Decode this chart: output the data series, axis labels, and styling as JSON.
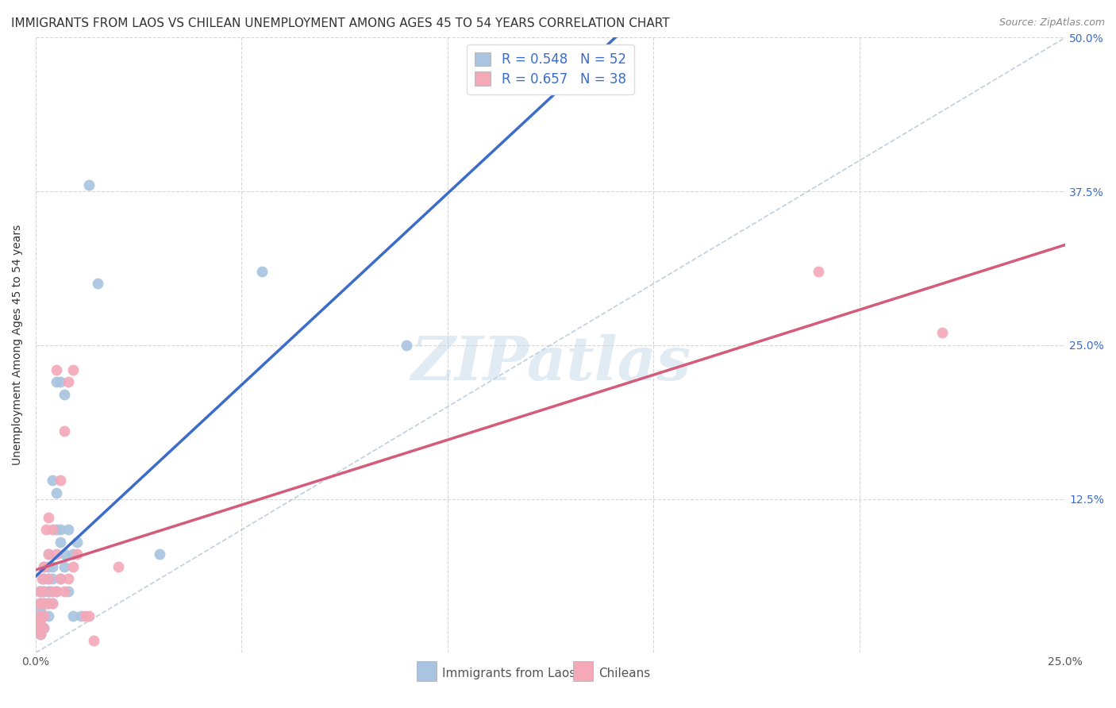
{
  "title": "IMMIGRANTS FROM LAOS VS CHILEAN UNEMPLOYMENT AMONG AGES 45 TO 54 YEARS CORRELATION CHART",
  "source": "Source: ZipAtlas.com",
  "ylabel": "Unemployment Among Ages 45 to 54 years",
  "xlabel_laos": "Immigrants from Laos",
  "xlabel_chileans": "Chileans",
  "xlim": [
    0.0,
    0.25
  ],
  "ylim": [
    0.0,
    0.5
  ],
  "xticks": [
    0.0,
    0.05,
    0.1,
    0.15,
    0.2,
    0.25
  ],
  "yticks": [
    0.0,
    0.125,
    0.25,
    0.375,
    0.5
  ],
  "R_laos": 0.548,
  "N_laos": 52,
  "R_chileans": 0.657,
  "N_chileans": 38,
  "color_laos": "#a8c4e0",
  "color_chileans": "#f4a8b8",
  "line_color_laos": "#3b6cc9",
  "line_color_chileans": "#d45b7a",
  "line_color_dashed": "#b0c4d8",
  "watermark": "ZIPatlas",
  "laos_x": [
    0.0005,
    0.0008,
    0.001,
    0.001,
    0.001,
    0.0012,
    0.0012,
    0.0015,
    0.0015,
    0.0015,
    0.0015,
    0.0018,
    0.002,
    0.002,
    0.002,
    0.002,
    0.002,
    0.002,
    0.0025,
    0.003,
    0.003,
    0.003,
    0.003,
    0.003,
    0.003,
    0.0035,
    0.004,
    0.004,
    0.004,
    0.004,
    0.005,
    0.005,
    0.005,
    0.005,
    0.006,
    0.006,
    0.006,
    0.006,
    0.007,
    0.007,
    0.007,
    0.008,
    0.008,
    0.009,
    0.009,
    0.01,
    0.011,
    0.013,
    0.015,
    0.03,
    0.055,
    0.09
  ],
  "laos_y": [
    0.02,
    0.03,
    0.025,
    0.04,
    0.05,
    0.015,
    0.035,
    0.02,
    0.03,
    0.04,
    0.05,
    0.06,
    0.02,
    0.03,
    0.04,
    0.05,
    0.06,
    0.07,
    0.04,
    0.03,
    0.04,
    0.05,
    0.06,
    0.07,
    0.08,
    0.05,
    0.04,
    0.06,
    0.07,
    0.14,
    0.05,
    0.1,
    0.13,
    0.22,
    0.06,
    0.09,
    0.1,
    0.22,
    0.07,
    0.08,
    0.21,
    0.05,
    0.1,
    0.03,
    0.08,
    0.09,
    0.03,
    0.38,
    0.3,
    0.08,
    0.31,
    0.25
  ],
  "chilean_x": [
    0.0005,
    0.0008,
    0.001,
    0.001,
    0.001,
    0.0012,
    0.0015,
    0.0015,
    0.002,
    0.002,
    0.002,
    0.002,
    0.0025,
    0.003,
    0.003,
    0.003,
    0.003,
    0.004,
    0.004,
    0.004,
    0.005,
    0.005,
    0.005,
    0.006,
    0.006,
    0.007,
    0.007,
    0.008,
    0.008,
    0.009,
    0.009,
    0.01,
    0.012,
    0.013,
    0.014,
    0.02,
    0.19,
    0.22
  ],
  "chilean_y": [
    0.02,
    0.03,
    0.025,
    0.04,
    0.05,
    0.015,
    0.04,
    0.06,
    0.02,
    0.03,
    0.05,
    0.07,
    0.1,
    0.04,
    0.06,
    0.08,
    0.11,
    0.04,
    0.05,
    0.1,
    0.05,
    0.08,
    0.23,
    0.06,
    0.14,
    0.05,
    0.18,
    0.06,
    0.22,
    0.07,
    0.23,
    0.08,
    0.03,
    0.03,
    0.01,
    0.07,
    0.31,
    0.26
  ],
  "background_color": "#ffffff",
  "grid_color": "#cccccc",
  "title_fontsize": 11,
  "axis_fontsize": 10,
  "tick_color": "#3b6cc9",
  "legend_fontsize": 12
}
